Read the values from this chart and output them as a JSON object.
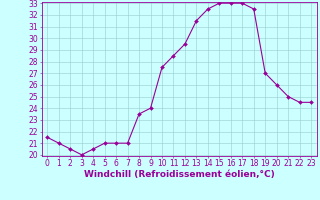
{
  "x": [
    0,
    1,
    2,
    3,
    4,
    5,
    6,
    7,
    8,
    9,
    10,
    11,
    12,
    13,
    14,
    15,
    16,
    17,
    18,
    19,
    20,
    21,
    22,
    23
  ],
  "y": [
    21.5,
    21.0,
    20.5,
    20.0,
    20.5,
    21.0,
    21.0,
    21.0,
    23.5,
    24.0,
    27.5,
    28.5,
    29.5,
    31.5,
    32.5,
    33.0,
    33.0,
    33.0,
    32.5,
    27.0,
    26.0,
    25.0,
    24.5,
    24.5
  ],
  "line_color": "#990099",
  "marker_color": "#990099",
  "bg_color": "#ccffff",
  "grid_color": "#99cccc",
  "xlabel": "Windchill (Refroidissement éolien,°C)",
  "xlabel_color": "#990099",
  "tick_color": "#990099",
  "ylim": [
    20,
    33
  ],
  "xlim": [
    -0.5,
    23.5
  ],
  "yticks": [
    20,
    21,
    22,
    23,
    24,
    25,
    26,
    27,
    28,
    29,
    30,
    31,
    32,
    33
  ],
  "xticks": [
    0,
    1,
    2,
    3,
    4,
    5,
    6,
    7,
    8,
    9,
    10,
    11,
    12,
    13,
    14,
    15,
    16,
    17,
    18,
    19,
    20,
    21,
    22,
    23
  ],
  "font_size": 5.5,
  "xlabel_fontsize": 6.5,
  "linewidth": 0.8,
  "markersize": 2.0
}
